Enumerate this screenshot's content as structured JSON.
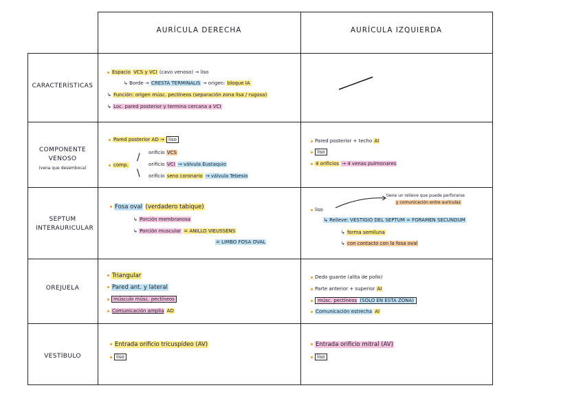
{
  "headers": {
    "right": "AURÍCULA DERECHA",
    "left": "AURÍCULA IZQUIERDA"
  },
  "rows": {
    "caracteristicas": {
      "label": "CARACTERÍSTICAS"
    },
    "venoso": {
      "label": "COMPONENTE VENOSO",
      "sub": "(vena que desemboca)"
    },
    "septum": {
      "label": "SEPTUM INTERAURICULAR"
    },
    "orejuela": {
      "label": "OREJUELA"
    },
    "vestibulo": {
      "label": "VESTÍBULO"
    }
  },
  "caracteristicas": {
    "r1_a": "Espacio",
    "r1_b": "VCS y VCI",
    "r1_c": "(cavo venoso) → liso",
    "r2_a": "↳ Borde → ",
    "r2_b": "CRESTA TERMINALIS",
    "r2_c": " → origen: ",
    "r2_d": "bloque IA",
    "r3_a": "↳ ",
    "r3_b": "Función: origen músc. pectíneos (separación zona lisa / rugosa)",
    "r4_a": "↳ ",
    "r4_b": "Loc. pared posterior y termina cercana a VCI"
  },
  "venoso": {
    "r1_a": "Pared posterior AD → ",
    "r1_b": "liso",
    "r2_label": "comp.",
    "r2_a": "orificio",
    "r2_b": "VCS",
    "r3_a": "orificio",
    "r3_b": "VCI",
    "r3_c": "→ válvula Eustaquio",
    "r4_a": "orificio",
    "r4_b": "seno coronario",
    "r4_c": "→ válvula Tebesio",
    "l1_a": "Pared posterior + techo",
    "l1_b": "AI",
    "l2_a": "liso",
    "l3_a": "4 orificios",
    "l3_b": "→ 4 venas pulmonares"
  },
  "septum": {
    "r1_a": "Fosa oval",
    "r1_b": "(verdadero tabique)",
    "r2_a": "↳ ",
    "r2_b": "Porción membranosa",
    "r3_a": "↳ ",
    "r3_b": "Porción muscular",
    "r3_c": "= ANILLO VIEUSSENS",
    "r4_a": "= LIMBO FOSA OVAL",
    "l0_a": "tiene un relieve que puede perforarse",
    "l0_b": "y comunicación entre aurículas",
    "l1_a": "liso",
    "l2_a": "↳ Relieve: VESTIGIO DEL SEPTUM = FORAMEN SECUNDUM",
    "l3_a": "↳ ",
    "l3_b": "forma semiluna",
    "l4_a": "↳ ",
    "l4_b": "con contacto con la fosa oval"
  },
  "orejuela": {
    "r1_a": "Triangular",
    "r2_a": "Pared ant. y lateral",
    "r3_a": "músculo músc. pectíneos",
    "r4_a": "Comunicación amplia",
    "r4_b": "AD",
    "l1_a": "Dedo guante (alita de pollo)",
    "l2_a": "Parte anterior + superior",
    "l2_b": "AI",
    "l3_a": "músc. pectíneos",
    "l3_b": "(SOLO EN ESTA ZONA)",
    "l4_a": "Comunicación estrecha",
    "l4_b": "AI"
  },
  "vestibulo": {
    "r1_a": "Entrada orificio tricuspídeo (AV)",
    "r2_a": "liso",
    "l1_a": "Entrada orificio mitral (AV)",
    "l2_a": "liso"
  }
}
